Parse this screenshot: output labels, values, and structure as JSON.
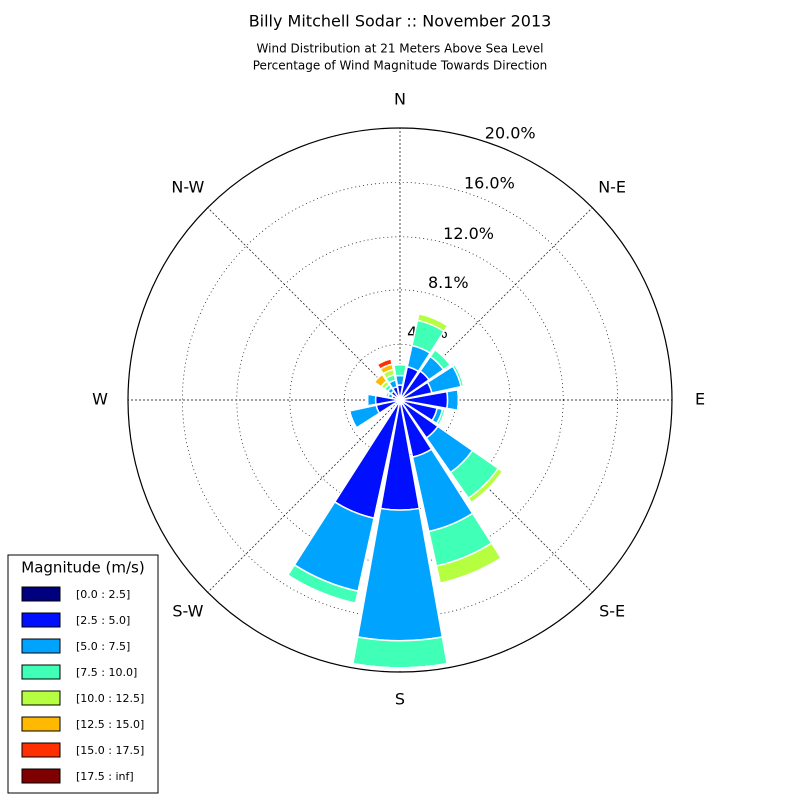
{
  "chart_data": {
    "type": "windrose",
    "title": "Billy Mitchell Sodar :: November 2013",
    "subtitle": [
      "Wind Distribution at 21 Meters Above Sea Level",
      "Percentage of Wind Magnitude Towards Direction"
    ],
    "categories": [
      "N",
      null,
      "N-E",
      null,
      "E",
      null,
      "S-E",
      null,
      "S",
      null,
      "S-W",
      null,
      "W",
      null,
      "N-W",
      null
    ],
    "label_categories": [
      "N",
      "N-E",
      "E",
      "S-E",
      "S",
      "S-W",
      "W",
      "N-W"
    ],
    "ylim": [
      0,
      20.0
    ],
    "yticks": [
      {
        "value": 4.1,
        "label": "4.1%"
      },
      {
        "value": 8.1,
        "label": "8.1%"
      },
      {
        "value": 12.0,
        "label": "12.0%"
      },
      {
        "value": 16.0,
        "label": "16.0%"
      },
      {
        "value": 20.0,
        "label": "20.0%"
      }
    ],
    "grid": true,
    "legend_title": "Magnitude (m/s)",
    "legend_position": "lower left",
    "series": [
      {
        "name": "[0.0 : 2.5]",
        "color": "#00007f",
        "values": [
          0.2,
          0.2,
          0.2,
          0.2,
          0.2,
          0.2,
          0.3,
          0.3,
          0.3,
          0.3,
          0.2,
          0.2,
          0.2,
          0.1,
          0.2,
          0.2
        ]
      },
      {
        "name": "[2.5 : 5.0]",
        "color": "#0010ff",
        "values": [
          0.9,
          2.3,
          2.4,
          2.2,
          3.3,
          2.6,
          3.1,
          4.0,
          7.8,
          8.6,
          0.3,
          1.6,
          1.6,
          0.5,
          0.6,
          0.8
        ]
      },
      {
        "name": "[5.0 : 7.5]",
        "color": "#00a4ff",
        "values": [
          0.7,
          1.6,
          1.3,
          2.2,
          0.8,
          0.4,
          3.1,
          5.6,
          9.6,
          5.5,
          0,
          2.0,
          0.6,
          0.3,
          0.3,
          0.5
        ]
      },
      {
        "name": "[7.5 : 10.0]",
        "color": "#40ffb6",
        "values": [
          0.8,
          1.9,
          0.6,
          0.2,
          0,
          0.2,
          2.3,
          2.6,
          2.0,
          0.9,
          0,
          0,
          0,
          0.2,
          0.3,
          0.4
        ]
      },
      {
        "name": "[10.0 : 12.5]",
        "color": "#b6ff40",
        "values": [
          0,
          0.5,
          0.1,
          0,
          0,
          0,
          0.4,
          1.3,
          0,
          0,
          0,
          0,
          0,
          0,
          0.3,
          0.4
        ]
      },
      {
        "name": "[12.5 : 15.0]",
        "color": "#ffb900",
        "values": [
          0,
          0,
          0,
          0,
          0,
          0,
          0,
          0,
          0,
          0,
          0,
          0,
          0,
          0,
          0.6,
          0.4
        ]
      },
      {
        "name": "[15.0 : 17.5]",
        "color": "#ff3000",
        "values": [
          0,
          0,
          0,
          0,
          0,
          0,
          0,
          0,
          0,
          0,
          0,
          0,
          0,
          0,
          0,
          0.4
        ]
      },
      {
        "name": "[17.5 : inf]",
        "color": "#7f0000",
        "values": [
          0,
          0,
          0,
          0,
          0,
          0,
          0,
          0,
          0,
          0,
          0,
          0,
          0,
          0,
          0,
          0
        ]
      }
    ]
  }
}
